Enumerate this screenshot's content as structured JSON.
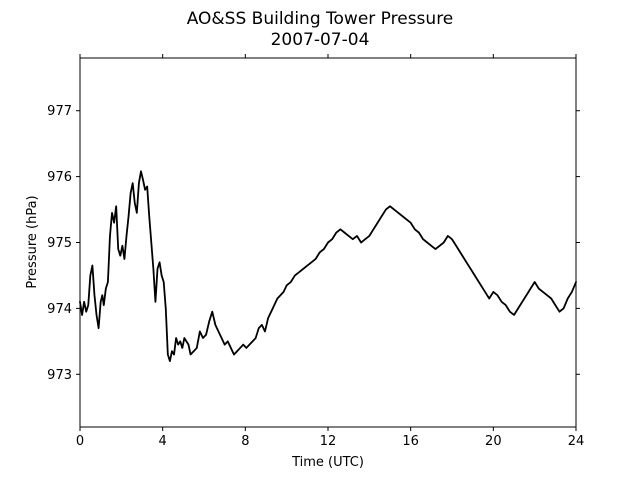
{
  "chart_data": {
    "type": "line",
    "title": "AO&SS Building Tower Pressure",
    "subtitle": "2007-07-04",
    "xlabel": "Time (UTC)",
    "ylabel": "Pressure (hPa)",
    "xlim": [
      0,
      24
    ],
    "ylim": [
      972.2,
      977.8
    ],
    "xticks": [
      0,
      4,
      8,
      12,
      16,
      20,
      24
    ],
    "yticks": [
      973,
      974,
      975,
      976,
      977
    ],
    "grid": false,
    "legend": "none",
    "line_color": "#000000",
    "series": [
      {
        "x": [
          0.0,
          0.1,
          0.2,
          0.3,
          0.4,
          0.5,
          0.6,
          0.7,
          0.8,
          0.9,
          1.0,
          1.08,
          1.15,
          1.25,
          1.35,
          1.45,
          1.55,
          1.65,
          1.75,
          1.85,
          1.95,
          2.05,
          2.15,
          2.25,
          2.35,
          2.45,
          2.55,
          2.65,
          2.75,
          2.85,
          2.95,
          3.05,
          3.15,
          3.25,
          3.35,
          3.45,
          3.55,
          3.65,
          3.75,
          3.85,
          3.95,
          4.05,
          4.15,
          4.25,
          4.35,
          4.45,
          4.55,
          4.65,
          4.75,
          4.85,
          4.95,
          5.05,
          5.15,
          5.25,
          5.35,
          5.5,
          5.65,
          5.8,
          5.95,
          6.1,
          6.25,
          6.4,
          6.55,
          6.7,
          6.85,
          7.0,
          7.15,
          7.3,
          7.45,
          7.6,
          7.75,
          7.9,
          8.05,
          8.2,
          8.35,
          8.5,
          8.65,
          8.8,
          8.95,
          9.1,
          9.25,
          9.4,
          9.55,
          9.7,
          9.85,
          10.0,
          10.2,
          10.4,
          10.6,
          10.8,
          11.0,
          11.2,
          11.4,
          11.6,
          11.8,
          12.0,
          12.2,
          12.4,
          12.6,
          12.8,
          13.0,
          13.2,
          13.4,
          13.6,
          13.8,
          14.0,
          14.2,
          14.4,
          14.6,
          14.8,
          15.0,
          15.2,
          15.4,
          15.6,
          15.8,
          16.0,
          16.2,
          16.4,
          16.6,
          16.8,
          17.0,
          17.2,
          17.4,
          17.6,
          17.8,
          18.0,
          18.2,
          18.4,
          18.6,
          18.8,
          19.0,
          19.2,
          19.4,
          19.6,
          19.8,
          20.0,
          20.2,
          20.4,
          20.6,
          20.8,
          21.0,
          21.2,
          21.4,
          21.6,
          21.8,
          22.0,
          22.2,
          22.4,
          22.6,
          22.8,
          23.0,
          23.2,
          23.4,
          23.6,
          23.8,
          24.0
        ],
        "y": [
          974.1,
          973.9,
          974.1,
          973.95,
          974.05,
          974.5,
          974.65,
          974.2,
          973.9,
          973.7,
          974.1,
          974.2,
          974.05,
          974.3,
          974.4,
          975.1,
          975.45,
          975.3,
          975.55,
          974.9,
          974.8,
          974.95,
          974.75,
          975.1,
          975.4,
          975.75,
          975.9,
          975.6,
          975.45,
          975.9,
          976.08,
          975.95,
          975.8,
          975.85,
          975.4,
          975.0,
          974.6,
          974.1,
          974.6,
          974.7,
          974.5,
          974.4,
          974.0,
          973.3,
          973.2,
          973.35,
          973.3,
          973.55,
          973.45,
          973.5,
          973.4,
          973.55,
          973.5,
          973.45,
          973.3,
          973.35,
          973.4,
          973.65,
          973.55,
          973.6,
          973.8,
          973.95,
          973.75,
          973.65,
          973.55,
          973.45,
          973.5,
          973.4,
          973.3,
          973.35,
          973.4,
          973.45,
          973.4,
          973.45,
          973.5,
          973.55,
          973.7,
          973.75,
          973.65,
          973.85,
          973.95,
          974.05,
          974.15,
          974.2,
          974.25,
          974.35,
          974.4,
          974.5,
          974.55,
          974.6,
          974.65,
          974.7,
          974.75,
          974.85,
          974.9,
          975.0,
          975.05,
          975.15,
          975.2,
          975.15,
          975.1,
          975.05,
          975.1,
          975.0,
          975.05,
          975.1,
          975.2,
          975.3,
          975.4,
          975.5,
          975.55,
          975.5,
          975.45,
          975.4,
          975.35,
          975.3,
          975.2,
          975.15,
          975.05,
          975.0,
          974.95,
          974.9,
          974.95,
          975.0,
          975.1,
          975.05,
          974.95,
          974.85,
          974.75,
          974.65,
          974.55,
          974.45,
          974.35,
          974.25,
          974.15,
          974.25,
          974.2,
          974.1,
          974.05,
          973.95,
          973.9,
          974.0,
          974.1,
          974.2,
          974.3,
          974.4,
          974.3,
          974.25,
          974.2,
          974.15,
          974.05,
          973.95,
          974.0,
          974.15,
          974.25,
          974.4
        ]
      }
    ]
  }
}
